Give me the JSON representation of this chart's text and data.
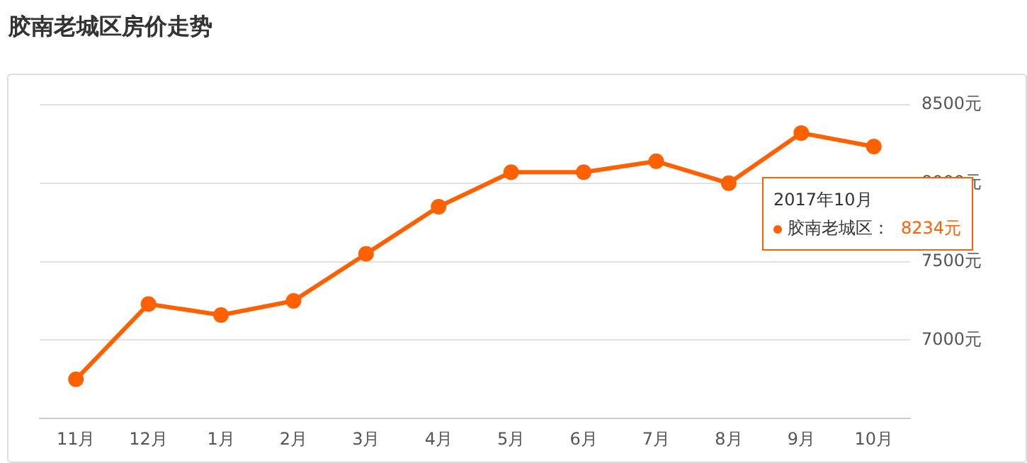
{
  "chart_data": {
    "type": "line",
    "title": "胶南老城区房价走势",
    "categories": [
      "11月",
      "12月",
      "1月",
      "2月",
      "3月",
      "4月",
      "5月",
      "6月",
      "7月",
      "8月",
      "9月",
      "10月"
    ],
    "series": [
      {
        "color": "#ff6000",
        "values": [
          6750,
          7230,
          7160,
          7250,
          7550,
          7850,
          8070,
          8070,
          8140,
          8000,
          8320,
          8234
        ]
      }
    ],
    "ylim": [
      6500,
      8500
    ],
    "yticks": [
      {
        "value": 6500,
        "label": null
      },
      {
        "value": 7000,
        "label": "7000元"
      },
      {
        "value": 7500,
        "label": "7500元"
      },
      {
        "value": 8000,
        "label": "8000元"
      },
      {
        "value": 8500,
        "label": "8500元"
      }
    ],
    "grid": "y",
    "legend": false,
    "marker": "circle",
    "line_style": "solid",
    "annotations": [
      "2017年10月",
      "胶南老城区：",
      "8234元"
    ]
  }
}
